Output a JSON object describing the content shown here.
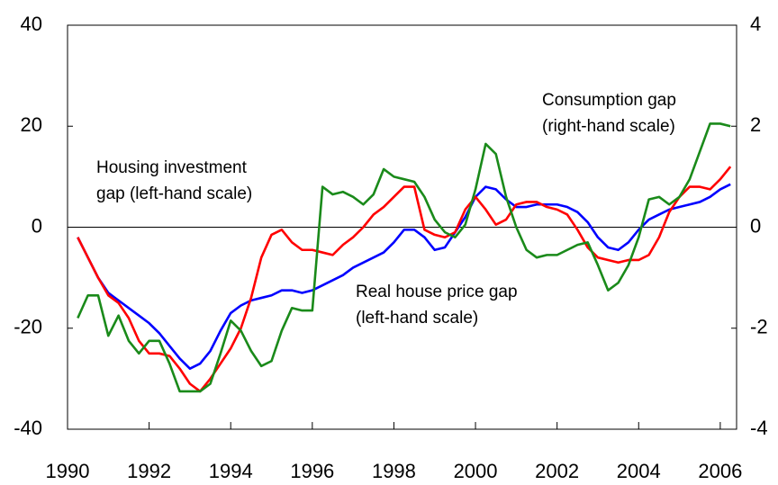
{
  "chart_data": {
    "type": "line",
    "x": [
      1990.25,
      1990.5,
      1990.75,
      1991,
      1991.25,
      1991.5,
      1991.75,
      1992,
      1992.25,
      1992.5,
      1992.75,
      1993,
      1993.25,
      1993.5,
      1993.75,
      1994,
      1994.25,
      1994.5,
      1994.75,
      1995,
      1995.25,
      1995.5,
      1995.75,
      1996,
      1996.25,
      1996.5,
      1996.75,
      1997,
      1997.25,
      1997.5,
      1997.75,
      1998,
      1998.25,
      1998.5,
      1998.75,
      1999,
      1999.25,
      1999.5,
      1999.75,
      2000,
      2000.25,
      2000.5,
      2000.75,
      2001,
      2001.25,
      2001.5,
      2001.75,
      2002,
      2002.25,
      2002.5,
      2002.75,
      2003,
      2003.25,
      2003.5,
      2003.75,
      2004,
      2004.25,
      2004.5,
      2004.75,
      2005,
      2005.25,
      2005.5,
      2005.75,
      2006,
      2006.25
    ],
    "series": [
      {
        "color": "#0000ff",
        "values": [
          -2,
          -6,
          -10,
          -13,
          -14.5,
          -16,
          -17.5,
          -19,
          -21,
          -23.5,
          -26,
          -28,
          -27,
          -24.5,
          -20.5,
          -17,
          -15.5,
          -14.5,
          -14,
          -13.5,
          -12.5,
          -12.5,
          -13,
          -12.5,
          -11.5,
          -10.5,
          -9.5,
          -8,
          -7,
          -6,
          -5,
          -3,
          -0.5,
          -0.5,
          -2,
          -4.5,
          -4,
          -1,
          2,
          6,
          8,
          7.5,
          5.5,
          4,
          4,
          4.5,
          4.5,
          4.5,
          4,
          3,
          1,
          -2,
          -4,
          -4.5,
          -3,
          -0.5,
          1.5,
          2.5,
          3.5,
          4,
          4.5,
          5,
          6,
          7.5,
          8.5
        ]
      },
      {
        "color": "#ff0000",
        "values": [
          -2,
          -6,
          -10,
          -13.5,
          -15,
          -18,
          -22.5,
          -25,
          -25,
          -25.5,
          -28,
          -31,
          -32.5,
          -30,
          -27,
          -24,
          -20,
          -14,
          -6,
          -1.5,
          -0.5,
          -3,
          -4.5,
          -4.5,
          -5,
          -5.5,
          -3.5,
          -2,
          0,
          2.5,
          4,
          6,
          8,
          8,
          -0.5,
          -1.5,
          -2,
          -1,
          3.5,
          6,
          3.5,
          0.5,
          1.5,
          4.5,
          5,
          5,
          4,
          3.5,
          2.5,
          -0.5,
          -4,
          -6,
          -6.5,
          -7,
          -6.5,
          -6.5,
          -5.5,
          -2,
          3,
          6,
          8,
          8,
          7.5,
          9.5,
          12
        ]
      },
      {
        "color": "#1a8a1a",
        "axis": "y2",
        "values": [
          -1.8,
          -1.35,
          -1.35,
          -2.15,
          -1.75,
          -2.25,
          -2.5,
          -2.25,
          -2.25,
          -2.7,
          -3.25,
          -3.25,
          -3.25,
          -3.1,
          -2.5,
          -1.85,
          -2.05,
          -2.45,
          -2.75,
          -2.65,
          -2.05,
          -1.6,
          -1.65,
          -1.65,
          0.8,
          0.65,
          0.7,
          0.6,
          0.45,
          0.65,
          1.15,
          1.0,
          0.95,
          0.9,
          0.6,
          0.15,
          -0.1,
          -0.2,
          0.05,
          0.75,
          1.65,
          1.45,
          0.6,
          0,
          -0.45,
          -0.6,
          -0.55,
          -0.55,
          -0.45,
          -0.35,
          -0.3,
          -0.75,
          -1.25,
          -1.1,
          -0.75,
          -0.2,
          0.55,
          0.6,
          0.45,
          0.6,
          0.95,
          1.5,
          2.05,
          2.05,
          2.0
        ]
      }
    ],
    "annotations": [
      [
        "Housing investment",
        "gap (left-hand scale)"
      ],
      [
        "Real house price gap",
        "(left-hand scale)"
      ],
      [
        "Consumption gap",
        "(right-hand scale)"
      ]
    ],
    "xlim": [
      1990,
      2006.4
    ],
    "xticks": [
      1990,
      1992,
      1994,
      1996,
      1998,
      2000,
      2002,
      2004,
      2006
    ],
    "ylim": [
      -40,
      40
    ],
    "yticks": [
      -40,
      -20,
      0,
      20,
      40
    ],
    "y2lim": [
      -4,
      4
    ],
    "y2ticks": [
      -4,
      -2,
      0,
      2,
      4
    ]
  }
}
